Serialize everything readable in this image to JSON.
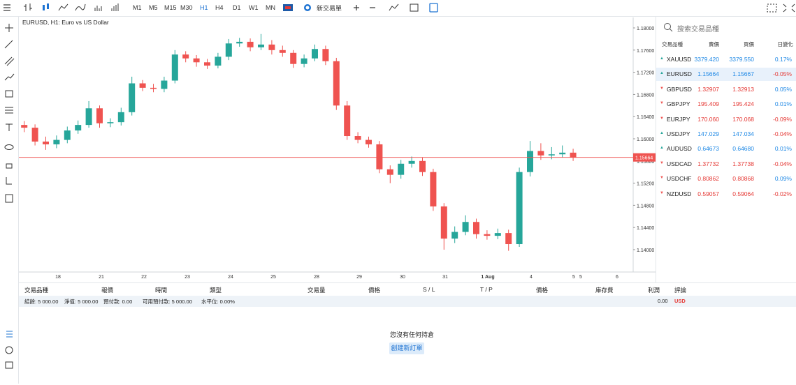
{
  "toolbar": {
    "timeframes": [
      "M1",
      "M5",
      "M15",
      "M30",
      "H1",
      "H4",
      "D1",
      "W1",
      "MN"
    ],
    "active_timeframe_index": 4,
    "new_order": "新交易單"
  },
  "chart_data": {
    "type": "candlestick",
    "title": "EURUSD, H1: Euro vs US Dollar",
    "series": [
      {
        "up_color": "#26a69a",
        "down_color": "#ef5350",
        "open": [
          1.1625,
          1.162,
          1.1595,
          1.159,
          1.1598,
          1.1615,
          1.1625,
          1.1655,
          1.1628,
          1.163,
          1.1648,
          1.17,
          1.1692,
          1.169,
          1.1705,
          1.1752,
          1.1745,
          1.1738,
          1.1732,
          1.1748,
          1.1772,
          1.1775,
          1.1765,
          1.177,
          1.176,
          1.1755,
          1.1735,
          1.1745,
          1.1762,
          1.174,
          1.166,
          1.1605,
          1.1598,
          1.159,
          1.1545,
          1.1535,
          1.1555,
          1.156,
          1.154,
          1.1478,
          1.142,
          1.1432,
          1.145,
          1.1428,
          1.1425,
          1.143,
          1.141,
          1.154,
          1.1578,
          1.157,
          1.1572,
          1.1575
        ],
        "high": [
          1.1632,
          1.1626,
          1.1604,
          1.1606,
          1.1622,
          1.1633,
          1.1668,
          1.166,
          1.1637,
          1.1656,
          1.1712,
          1.1706,
          1.1699,
          1.1712,
          1.176,
          1.1758,
          1.1751,
          1.1744,
          1.1755,
          1.178,
          1.1782,
          1.1781,
          1.1789,
          1.1778,
          1.1768,
          1.176,
          1.1752,
          1.177,
          1.1768,
          1.1746,
          1.1668,
          1.1612,
          1.1604,
          1.1596,
          1.1552,
          1.1562,
          1.1568,
          1.1566,
          1.1546,
          1.1484,
          1.1442,
          1.1462,
          1.1456,
          1.1435,
          1.1438,
          1.1436,
          1.1548,
          1.1596,
          1.1592,
          1.1585,
          1.1588,
          1.1582
        ],
        "low": [
          1.1612,
          1.1588,
          1.158,
          1.1583,
          1.1592,
          1.1609,
          1.162,
          1.162,
          1.1621,
          1.1624,
          1.1642,
          1.1686,
          1.1684,
          1.1684,
          1.17,
          1.1738,
          1.173,
          1.1726,
          1.1727,
          1.1742,
          1.1766,
          1.1758,
          1.176,
          1.1752,
          1.1748,
          1.1728,
          1.1729,
          1.174,
          1.1733,
          1.1652,
          1.1598,
          1.1592,
          1.1584,
          1.1538,
          1.152,
          1.1528,
          1.1548,
          1.1533,
          1.147,
          1.14,
          1.1412,
          1.1426,
          1.142,
          1.1418,
          1.1419,
          1.1398,
          1.1405,
          1.1532,
          1.1562,
          1.1563,
          1.1566,
          1.156
        ],
        "close": [
          1.162,
          1.1595,
          1.159,
          1.1598,
          1.1615,
          1.1625,
          1.1655,
          1.1628,
          1.163,
          1.1648,
          1.17,
          1.1692,
          1.169,
          1.1705,
          1.1752,
          1.1745,
          1.1738,
          1.1732,
          1.1748,
          1.1772,
          1.1775,
          1.1765,
          1.177,
          1.176,
          1.1755,
          1.1735,
          1.1745,
          1.1762,
          1.174,
          1.166,
          1.1605,
          1.1598,
          1.159,
          1.1545,
          1.1535,
          1.1555,
          1.156,
          1.154,
          1.1478,
          1.142,
          1.1432,
          1.145,
          1.1428,
          1.1425,
          1.143,
          1.141,
          1.154,
          1.1578,
          1.157,
          1.1572,
          1.1575,
          1.1566
        ]
      }
    ],
    "xticks": [
      "18",
      "21",
      "22",
      "23",
      "24",
      "25",
      "28",
      "29",
      "30",
      "31",
      "1 Aug",
      "4",
      "5",
      "5",
      "6"
    ],
    "ylim": [
      1.13597,
      1.18189
    ],
    "yticks": [
      {
        "value": 1.18,
        "label": "1.18000"
      },
      {
        "value": 1.176,
        "label": "1.17600"
      },
      {
        "value": 1.172,
        "label": "1.17200"
      },
      {
        "value": 1.168,
        "label": "1.16800"
      },
      {
        "value": 1.164,
        "label": "1.16400"
      },
      {
        "value": 1.16,
        "label": "1.16000"
      },
      {
        "value": 1.156,
        "label": "1.15600"
      },
      {
        "value": 1.152,
        "label": "1.15200"
      },
      {
        "value": 1.148,
        "label": "1.14800"
      },
      {
        "value": 1.144,
        "label": "1.14400"
      },
      {
        "value": 1.14,
        "label": "1.14000"
      }
    ],
    "current_price": {
      "value": 1.15664,
      "label": "1.15664"
    },
    "current_price_color": "#ef5350",
    "grid": false
  },
  "watchlist": {
    "search_placeholder": "搜索交易品種",
    "columns": [
      "交易品種",
      "賣價",
      "買價",
      "日變化"
    ],
    "selected_row": 1,
    "up_color": "#1e88e5",
    "down_color": "#e53935",
    "rows": [
      {
        "symbol": "XAUUSD",
        "bid": "3379.420",
        "ask": "3379.550",
        "change": "0.17%",
        "trend": "up"
      },
      {
        "symbol": "EURUSD",
        "bid": "1.15664",
        "ask": "1.15667",
        "change": "-0.05%",
        "trend": "up"
      },
      {
        "symbol": "GBPUSD",
        "bid": "1.32907",
        "ask": "1.32913",
        "change": "0.05%",
        "trend": "down"
      },
      {
        "symbol": "GBPJPY",
        "bid": "195.409",
        "ask": "195.424",
        "change": "0.01%",
        "trend": "down"
      },
      {
        "symbol": "EURJPY",
        "bid": "170.060",
        "ask": "170.068",
        "change": "-0.09%",
        "trend": "down"
      },
      {
        "symbol": "USDJPY",
        "bid": "147.029",
        "ask": "147.034",
        "change": "-0.04%",
        "trend": "up"
      },
      {
        "symbol": "AUDUSD",
        "bid": "0.64673",
        "ask": "0.64680",
        "change": "0.01%",
        "trend": "up"
      },
      {
        "symbol": "USDCAD",
        "bid": "1.37732",
        "ask": "1.37738",
        "change": "-0.04%",
        "trend": "down"
      },
      {
        "symbol": "USDCHF",
        "bid": "0.80862",
        "ask": "0.80868",
        "change": "0.09%",
        "trend": "down"
      },
      {
        "symbol": "NZDUSD",
        "bid": "0.59057",
        "ask": "0.59064",
        "change": "-0.02%",
        "trend": "down"
      }
    ]
  },
  "positions": {
    "columns": [
      "交易品種",
      "報價",
      "時間",
      "類型",
      "交易量",
      "價格",
      "S / L",
      "T / P",
      "價格",
      "庫存費",
      "利潤",
      "評論"
    ],
    "account": [
      "結餘: 5 000.00",
      "淨值: 5 000.00",
      "預付款: 0.00",
      "可用預付款: 5 000.00",
      "水平位: 0.00%"
    ],
    "profit": "0.00",
    "currency": "USD",
    "empty_message": "您沒有任何持倉",
    "create_button": "創建新訂單"
  }
}
